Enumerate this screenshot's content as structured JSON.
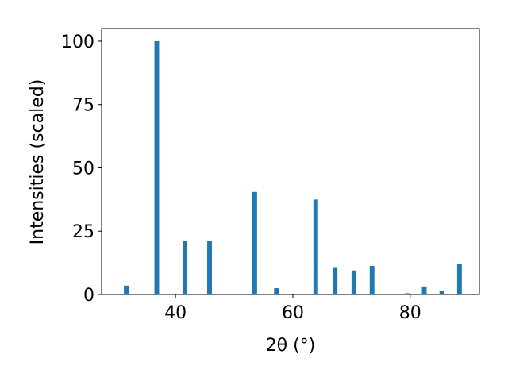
{
  "chart_data": {
    "type": "bar",
    "xlabel": "2θ (°)",
    "ylabel": "Intensities (scaled)",
    "x": [
      31.6,
      36.8,
      41.6,
      45.8,
      53.5,
      57.2,
      63.9,
      67.2,
      70.4,
      73.5,
      79.5,
      82.4,
      85.4,
      88.4
    ],
    "values": [
      3.5,
      100,
      21,
      21,
      40.5,
      2.5,
      37.5,
      10.5,
      9.5,
      11.3,
      0.5,
      3.2,
      1.5,
      12
    ],
    "bar_width": 0.8,
    "color": "#1f77b4",
    "xlim": [
      27.4,
      91.8
    ],
    "xticks": [
      40,
      60,
      80
    ],
    "ylim": [
      0,
      105
    ],
    "yticks": [
      0,
      25,
      50,
      75,
      100
    ],
    "grid": false
  }
}
